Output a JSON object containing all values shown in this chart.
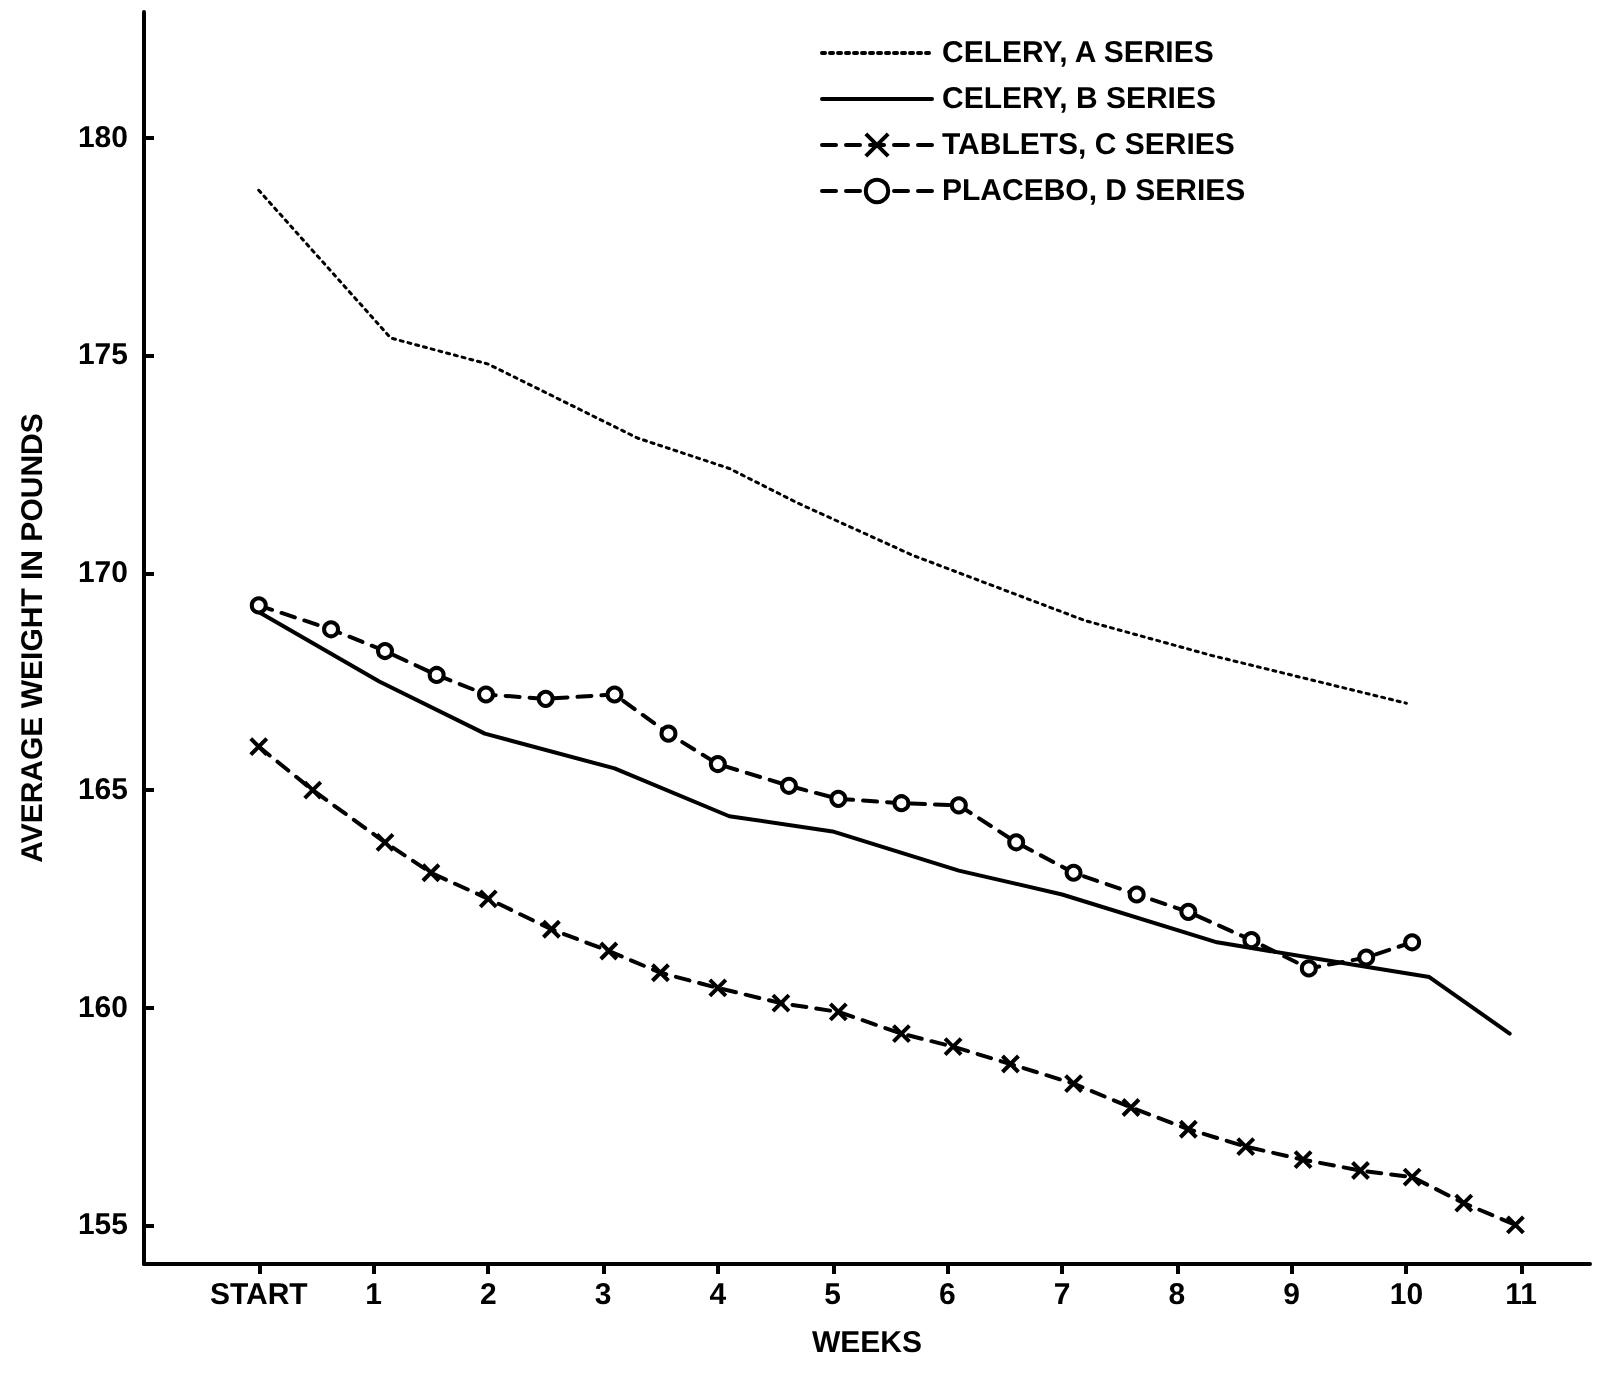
{
  "chart_data": {
    "type": "line",
    "xlabel": "WEEKS",
    "ylabel": "AVERAGE WEIGHT IN POUNDS",
    "xlim": [
      -1,
      11.6
    ],
    "xticks": [
      {
        "value": 0,
        "label": "START"
      },
      1,
      2,
      3,
      4,
      5,
      6,
      7,
      8,
      9,
      10,
      11
    ],
    "ylim": [
      154.1,
      182.9
    ],
    "yticks": [
      155,
      160,
      165,
      170,
      175,
      180
    ],
    "grid": false,
    "legend": "top right",
    "series": [
      {
        "name": "CELERY, A SERIES",
        "color": "#000000",
        "line_style": "dotted",
        "marker": "none",
        "x": [
          0,
          1.15,
          2,
          3.3,
          4.1,
          4.7,
          5.7,
          7.2,
          8.3,
          10
        ],
        "values": [
          178.8,
          175.4,
          174.8,
          173.1,
          172.4,
          171.6,
          170.4,
          168.9,
          168.1,
          167
        ]
      },
      {
        "name": "CELERY, B SERIES",
        "color": "#000000",
        "line_style": "solid",
        "marker": "none",
        "x": [
          0,
          1.05,
          1.97,
          3.1,
          4.1,
          5,
          6.1,
          7,
          8.35,
          9.5,
          10.2,
          10.9
        ],
        "values": [
          169.1,
          167.5,
          166.3,
          165.5,
          164.4,
          164.05,
          163.15,
          162.6,
          161.5,
          161,
          160.7,
          159.4
        ]
      },
      {
        "name": "TABLETS, C SERIES",
        "color": "#000000",
        "line_style": "dashed",
        "marker": "cross",
        "x": [
          0,
          0.47,
          1.1,
          1.5,
          2,
          2.55,
          3.05,
          3.5,
          4,
          4.55,
          5.05,
          5.6,
          6.05,
          6.55,
          7.1,
          7.6,
          8.1,
          8.6,
          9.1,
          9.6,
          10.05,
          10.5,
          10.95
        ],
        "values": [
          166,
          165,
          163.8,
          163.1,
          162.5,
          161.8,
          161.3,
          160.8,
          160.45,
          160.1,
          159.9,
          159.4,
          159.1,
          158.7,
          158.25,
          157.7,
          157.2,
          156.8,
          156.5,
          156.25,
          156.1,
          155.5,
          155
        ]
      },
      {
        "name": "PLACEBO, D SERIES",
        "color": "#000000",
        "line_style": "dashed",
        "marker": "circle",
        "x": [
          0,
          0.63,
          1.1,
          1.55,
          1.98,
          2.5,
          3.1,
          3.57,
          4,
          4.62,
          5.05,
          5.6,
          6.1,
          6.6,
          7.1,
          7.65,
          8.1,
          8.65,
          9.15,
          9.65,
          10.05
        ],
        "values": [
          169.25,
          168.7,
          168.2,
          167.65,
          167.2,
          167.1,
          167.2,
          166.3,
          165.6,
          165.1,
          164.8,
          164.7,
          164.65,
          163.8,
          163.1,
          162.6,
          162.2,
          161.55,
          160.9,
          161.15,
          161.5
        ]
      }
    ]
  }
}
